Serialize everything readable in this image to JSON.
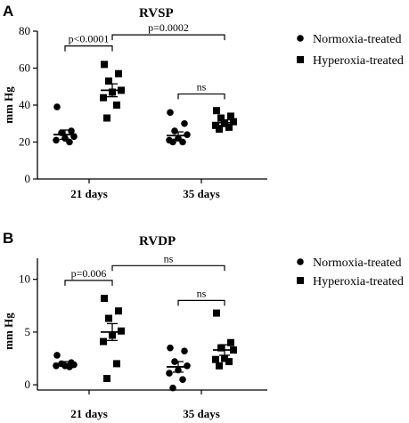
{
  "chart_data": [
    {
      "panel": "A",
      "type": "scatter",
      "title": "RVSP",
      "ylabel": "mm Hg",
      "ylim": [
        0,
        80
      ],
      "yticks": [
        0,
        20,
        40,
        60,
        80
      ],
      "categories": [
        "21 days",
        "35 days"
      ],
      "series": [
        {
          "name": "Normoxia-treated",
          "marker": "circle",
          "groups": [
            {
              "category": "21 days",
              "values": [
                39,
                26,
                25,
                23,
                22,
                21,
                20
              ],
              "mean": 24,
              "sem": 2.5
            },
            {
              "category": "35 days",
              "values": [
                36,
                30,
                26,
                24,
                22,
                21,
                20,
                20
              ],
              "mean": 23.5,
              "sem": 2
            }
          ]
        },
        {
          "name": "Hyperoxia-treated",
          "marker": "square",
          "groups": [
            {
              "category": "21 days",
              "values": [
                62,
                57,
                53,
                48,
                47,
                44,
                40,
                33
              ],
              "mean": 48,
              "sem": 3.5
            },
            {
              "category": "35 days",
              "values": [
                37,
                34,
                33,
                31,
                30,
                29,
                28,
                27
              ],
              "mean": 30.5,
              "sem": 1.5
            }
          ]
        }
      ],
      "annotations": [
        {
          "text": "p<0.0001",
          "from": [
            0,
            0
          ],
          "to": [
            0,
            1
          ],
          "y": 72
        },
        {
          "text": "p=0.0002",
          "from": [
            0,
            1
          ],
          "to": [
            1,
            1
          ],
          "y": 78
        },
        {
          "text": "ns",
          "from": [
            1,
            0
          ],
          "to": [
            1,
            1
          ],
          "y": 46
        }
      ],
      "legend": {
        "position": "right"
      }
    },
    {
      "panel": "B",
      "type": "scatter",
      "title": "RVDP",
      "ylabel": "mm Hg",
      "ylim": [
        -0.5,
        12
      ],
      "yticks": [
        0,
        5,
        10
      ],
      "categories": [
        "21 days",
        "35 days"
      ],
      "series": [
        {
          "name": "Normoxia-treated",
          "marker": "circle",
          "groups": [
            {
              "category": "21 days",
              "values": [
                2.8,
                2.1,
                2.0,
                1.9,
                1.8,
                1.8,
                1.7
              ],
              "mean": 2.0,
              "sem": 0.2
            },
            {
              "category": "35 days",
              "values": [
                3.5,
                3.2,
                2.2,
                1.8,
                1.4,
                1.1,
                0.5,
                -0.3
              ],
              "mean": 1.7,
              "sem": 0.5
            }
          ]
        },
        {
          "name": "Hyperoxia-treated",
          "marker": "square",
          "groups": [
            {
              "category": "21 days",
              "values": [
                8.2,
                7.0,
                6.3,
                5.1,
                4.7,
                4.1,
                2.0,
                0.6
              ],
              "mean": 5.0,
              "sem": 0.8
            },
            {
              "category": "35 days",
              "values": [
                6.8,
                4.0,
                3.5,
                3.3,
                2.5,
                2.4,
                2.2,
                1.8
              ],
              "mean": 3.3,
              "sem": 0.5
            }
          ]
        }
      ],
      "annotations": [
        {
          "text": "p=0.006",
          "from": [
            0,
            0
          ],
          "to": [
            0,
            1
          ],
          "y": 9.9
        },
        {
          "text": "ns",
          "from": [
            0,
            1
          ],
          "to": [
            1,
            1
          ],
          "y": 11.3
        },
        {
          "text": "ns",
          "from": [
            1,
            0
          ],
          "to": [
            1,
            1
          ],
          "y": 8.0
        }
      ],
      "legend": {
        "position": "right"
      }
    }
  ]
}
